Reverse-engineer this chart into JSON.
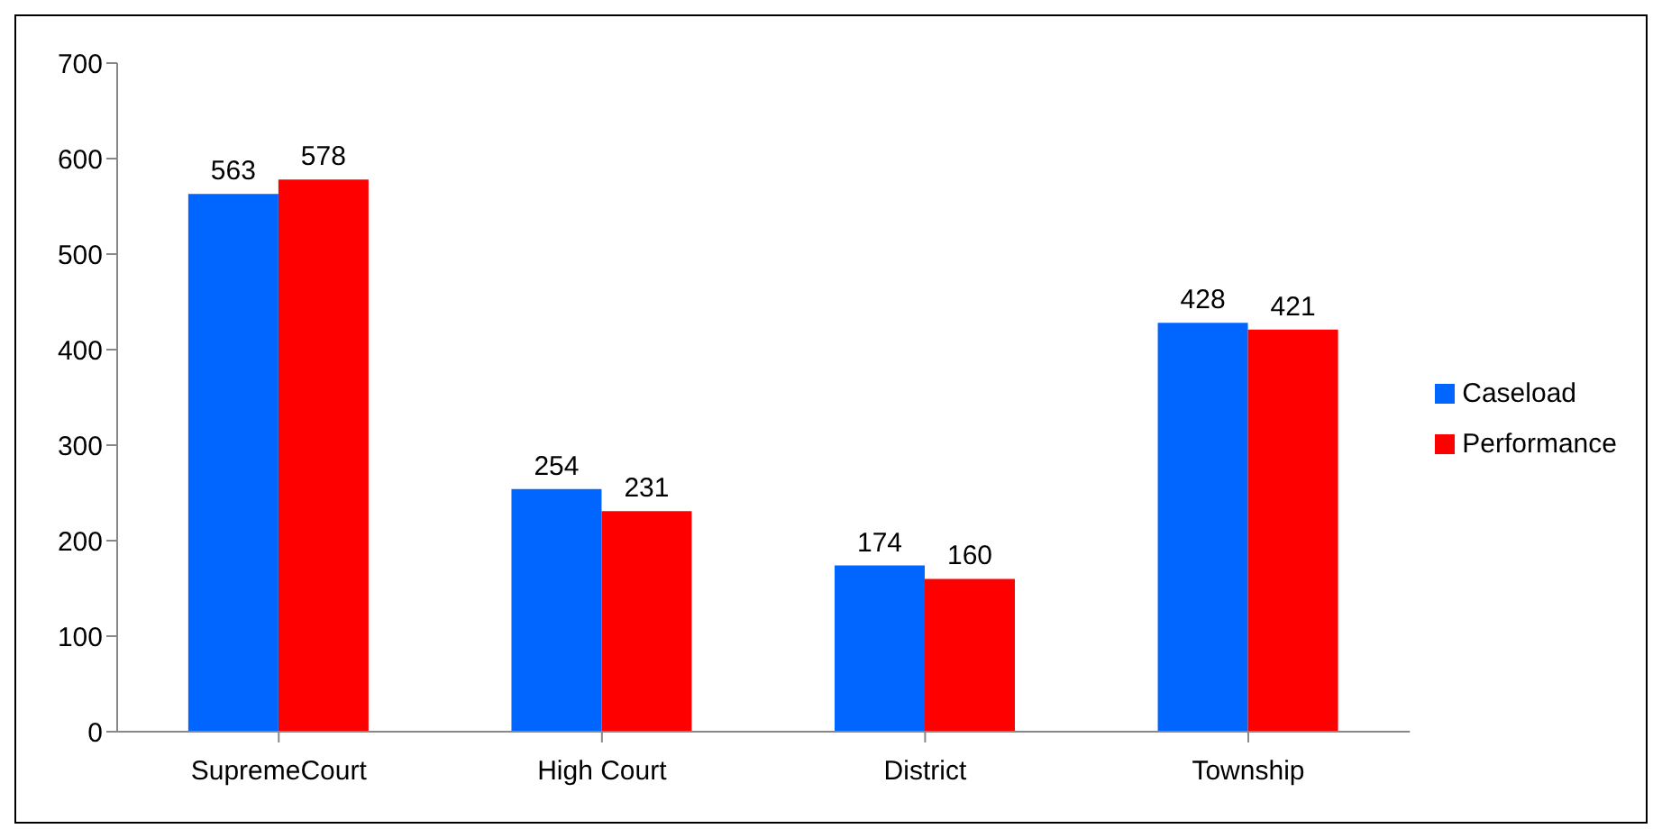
{
  "chart_data": {
    "type": "bar",
    "categories": [
      "SupremeCourt",
      "High Court",
      "District",
      "Township"
    ],
    "series": [
      {
        "name": "Caseload",
        "color": "#0066ff",
        "values": [
          563,
          254,
          174,
          428
        ]
      },
      {
        "name": "Performance",
        "color": "#ff0000",
        "values": [
          578,
          231,
          160,
          421
        ]
      }
    ],
    "ylim": [
      0,
      700
    ],
    "yticks": [
      0,
      100,
      200,
      300,
      400,
      500,
      600,
      700
    ],
    "grid": false,
    "legend": "right",
    "data_labels": true
  }
}
